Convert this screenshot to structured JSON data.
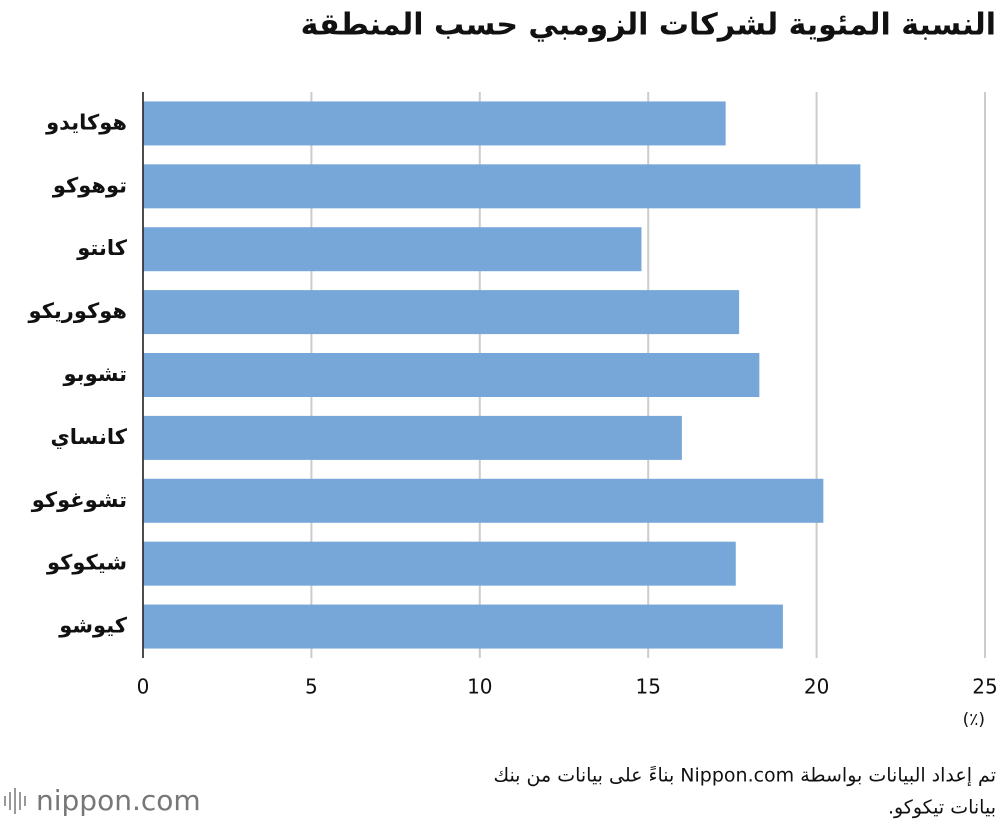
{
  "chart_data": {
    "type": "bar",
    "orientation": "horizontal",
    "title": "النسبة المئوية لشركات الزومبي حسب المنطقة",
    "categories": [
      "هوكايدو",
      "توهوكو",
      "كانتو",
      "هوكوريكو",
      "تشوبو",
      "كانساي",
      "تشوغوكو",
      "شيكوكو",
      "كيوشو"
    ],
    "values": [
      17.3,
      21.3,
      14.8,
      17.7,
      18.3,
      16.0,
      20.2,
      17.6,
      19.0
    ],
    "color": "#77a7d8",
    "xlim": [
      0,
      25
    ],
    "xticks": [
      0,
      5,
      10,
      15,
      20,
      25
    ],
    "grid": true,
    "x_unit": "(٪)",
    "source_lines": [
      "تم إعداد البيانات بواسطة Nippon.com بناءً على بيانات من بنك",
      "بيانات تيكوكو."
    ],
    "logo": "nippon.com"
  }
}
